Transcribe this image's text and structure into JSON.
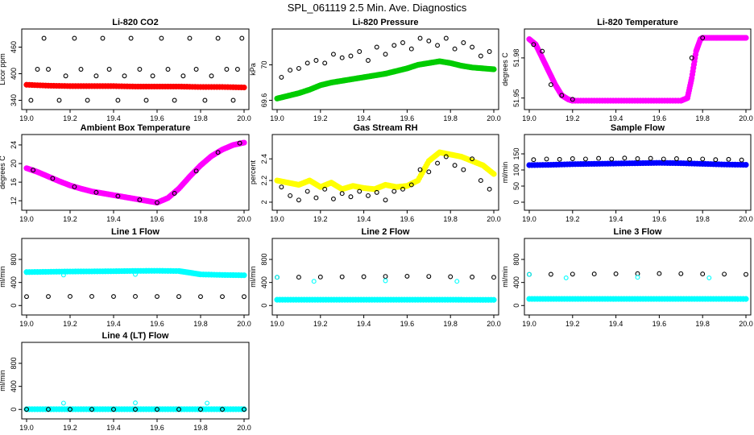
{
  "figure": {
    "title": "SPL_061119  2.5 Min. Ave. Diagnostics"
  },
  "chart_data": [
    {
      "type": "scatter",
      "title": "Li-820 CO2",
      "xlabel": "",
      "ylabel": "Licor ppm",
      "xlim": [
        19.0,
        20.0
      ],
      "ylim": [
        330,
        490
      ],
      "xticks": [
        19.0,
        19.2,
        19.4,
        19.6,
        19.8,
        20.0
      ],
      "yticks": [
        340,
        400,
        460
      ],
      "series": [
        {
          "color": "#000000",
          "marker": "open-circle",
          "x": [
            19.02,
            19.08,
            19.15,
            19.22,
            19.28,
            19.35,
            19.42,
            19.48,
            19.55,
            19.62,
            19.68,
            19.75,
            19.82,
            19.88,
            19.95,
            19.99
          ],
          "y": [
            340,
            480,
            340,
            480,
            340,
            480,
            340,
            480,
            340,
            480,
            340,
            480,
            340,
            480,
            340,
            480
          ]
        },
        {
          "color": "#000000",
          "marker": "open-circle",
          "x": [
            19.05,
            19.1,
            19.18,
            19.25,
            19.32,
            19.38,
            19.45,
            19.52,
            19.58,
            19.65,
            19.72,
            19.78,
            19.85,
            19.92,
            19.97
          ],
          "y": [
            410,
            410,
            395,
            410,
            395,
            410,
            395,
            410,
            395,
            410,
            395,
            410,
            395,
            410,
            410
          ]
        },
        {
          "color": "#ff0000",
          "marker": "filled-circle",
          "x": [
            19.0,
            19.1,
            19.2,
            19.3,
            19.4,
            19.5,
            19.6,
            19.7,
            19.8,
            19.9,
            20.0
          ],
          "y": [
            375,
            373,
            372,
            372,
            372,
            371,
            371,
            371,
            370,
            370,
            369
          ]
        }
      ]
    },
    {
      "type": "scatter",
      "title": "Li-820 Pressure",
      "xlabel": "",
      "ylabel": "kPa",
      "xlim": [
        19.0,
        20.0
      ],
      "ylim": [
        69.55,
        70.35
      ],
      "xticks": [
        19.0,
        19.2,
        19.4,
        19.6,
        19.8,
        20.0
      ],
      "yticks": [
        69.6,
        70.0
      ],
      "series": [
        {
          "color": "#00cc00",
          "marker": "filled-circle",
          "x": [
            19.0,
            19.05,
            19.1,
            19.15,
            19.2,
            19.25,
            19.3,
            19.35,
            19.4,
            19.45,
            19.5,
            19.55,
            19.6,
            19.65,
            19.7,
            19.75,
            19.8,
            19.85,
            19.9,
            19.95,
            20.0
          ],
          "y": [
            69.62,
            69.65,
            69.68,
            69.72,
            69.77,
            69.8,
            69.82,
            69.84,
            69.86,
            69.88,
            69.9,
            69.93,
            69.96,
            70.0,
            70.02,
            70.04,
            70.02,
            69.99,
            69.97,
            69.96,
            69.95
          ]
        },
        {
          "color": "#000000",
          "marker": "open-circle",
          "x": [
            19.02,
            19.06,
            19.1,
            19.14,
            19.18,
            19.22,
            19.26,
            19.3,
            19.34,
            19.38,
            19.42,
            19.46,
            19.5,
            19.54,
            19.58,
            19.62,
            19.66,
            19.7,
            19.74,
            19.78,
            19.82,
            19.86,
            19.9,
            19.94,
            19.98
          ],
          "y": [
            69.86,
            69.94,
            69.96,
            70.02,
            70.05,
            70.02,
            70.12,
            70.08,
            70.1,
            70.15,
            70.05,
            70.2,
            70.12,
            70.22,
            70.25,
            70.18,
            70.3,
            70.27,
            70.22,
            70.3,
            70.18,
            70.25,
            70.2,
            70.1,
            70.15
          ]
        }
      ]
    },
    {
      "type": "scatter",
      "title": "Li-820 Temperature",
      "xlabel": "",
      "ylabel": "degrees C",
      "xlim": [
        19.0,
        20.0
      ],
      "ylim": [
        51.945,
        51.998
      ],
      "xticks": [
        19.0,
        19.2,
        19.4,
        19.6,
        19.8,
        20.0
      ],
      "yticks": [
        51.95,
        51.98
      ],
      "series": [
        {
          "color": "#ff00ff",
          "marker": "filled-circle",
          "x": [
            19.0,
            19.03,
            19.06,
            19.09,
            19.12,
            19.15,
            19.18,
            19.2,
            19.3,
            19.4,
            19.5,
            19.6,
            19.7,
            19.73,
            19.75,
            19.77,
            19.79,
            19.8,
            19.85,
            19.9,
            19.95,
            20.0
          ],
          "y": [
            51.994,
            51.99,
            51.98,
            51.97,
            51.96,
            51.952,
            51.949,
            51.948,
            51.948,
            51.948,
            51.948,
            51.948,
            51.948,
            51.95,
            51.965,
            51.985,
            51.994,
            51.995,
            51.995,
            51.995,
            51.995,
            51.995
          ]
        },
        {
          "color": "#000000",
          "marker": "open-circle",
          "x": [
            19.02,
            19.06,
            19.1,
            19.15,
            19.2,
            19.75,
            19.8
          ],
          "y": [
            51.99,
            51.985,
            51.96,
            51.952,
            51.949,
            51.98,
            51.995
          ]
        }
      ]
    },
    {
      "type": "scatter",
      "title": "Ambient Box Temperature",
      "xlabel": "",
      "ylabel": "degrees C",
      "xlim": [
        19.0,
        20.0
      ],
      "ylim": [
        11.0,
        25.2
      ],
      "xticks": [
        19.0,
        19.2,
        19.4,
        19.6,
        19.8,
        20.0
      ],
      "yticks": [
        12,
        16,
        20,
        24
      ],
      "series": [
        {
          "color": "#ff00ff",
          "marker": "filled-circle",
          "x": [
            19.0,
            19.05,
            19.1,
            19.15,
            19.2,
            19.25,
            19.3,
            19.35,
            19.4,
            19.45,
            19.5,
            19.55,
            19.6,
            19.65,
            19.7,
            19.75,
            19.8,
            19.85,
            19.9,
            19.95,
            20.0
          ],
          "y": [
            19.0,
            18.2,
            17.2,
            16.2,
            15.3,
            14.6,
            14.0,
            13.6,
            13.2,
            12.8,
            12.4,
            12.0,
            11.6,
            12.6,
            14.6,
            17.2,
            19.6,
            21.6,
            23.0,
            24.0,
            24.5
          ]
        },
        {
          "color": "#000000",
          "marker": "open-circle",
          "x": [
            19.03,
            19.12,
            19.22,
            19.32,
            19.42,
            19.52,
            19.6,
            19.68,
            19.78,
            19.88,
            19.98
          ],
          "y": [
            18.6,
            16.8,
            15.0,
            13.8,
            13.0,
            12.2,
            11.6,
            13.6,
            18.4,
            22.4,
            24.4
          ]
        }
      ]
    },
    {
      "type": "scatter",
      "title": "Gas Stream RH",
      "xlabel": "",
      "ylabel": "percent",
      "xlim": [
        19.0,
        20.0
      ],
      "ylim": [
        1.97,
        2.58
      ],
      "xticks": [
        19.0,
        19.2,
        19.4,
        19.6,
        19.8,
        20.0
      ],
      "yticks": [
        2.0,
        2.2,
        2.4
      ],
      "series": [
        {
          "color": "#ffff00",
          "marker": "filled-circle",
          "x": [
            19.0,
            19.05,
            19.1,
            19.15,
            19.2,
            19.25,
            19.3,
            19.35,
            19.4,
            19.45,
            19.5,
            19.55,
            19.6,
            19.65,
            19.7,
            19.75,
            19.8,
            19.85,
            19.9,
            19.95,
            20.0
          ],
          "y": [
            2.2,
            2.18,
            2.16,
            2.2,
            2.14,
            2.18,
            2.12,
            2.15,
            2.13,
            2.12,
            2.16,
            2.14,
            2.15,
            2.2,
            2.38,
            2.46,
            2.44,
            2.42,
            2.38,
            2.34,
            2.26
          ]
        },
        {
          "color": "#000000",
          "marker": "open-circle",
          "x": [
            19.02,
            19.06,
            19.1,
            19.14,
            19.18,
            19.22,
            19.26,
            19.3,
            19.34,
            19.38,
            19.42,
            19.46,
            19.5,
            19.54,
            19.58,
            19.62,
            19.66,
            19.7,
            19.74,
            19.78,
            19.82,
            19.86,
            19.9,
            19.94,
            19.98
          ],
          "y": [
            2.14,
            2.06,
            2.02,
            2.1,
            2.04,
            2.12,
            2.03,
            2.08,
            2.05,
            2.1,
            2.06,
            2.09,
            2.02,
            2.1,
            2.12,
            2.16,
            2.3,
            2.28,
            2.36,
            2.42,
            2.34,
            2.3,
            2.4,
            2.2,
            2.12
          ]
        }
      ]
    },
    {
      "type": "scatter",
      "title": "Sample Flow",
      "xlabel": "",
      "ylabel": "ml/min",
      "xlim": [
        19.0,
        20.0
      ],
      "ylim": [
        -10,
        195
      ],
      "xticks": [
        19.0,
        19.2,
        19.4,
        19.6,
        19.8,
        20.0
      ],
      "yticks": [
        0,
        50,
        100,
        150
      ],
      "series": [
        {
          "color": "#0000ff",
          "marker": "filled-circle",
          "x": [
            19.0,
            19.1,
            19.2,
            19.3,
            19.4,
            19.5,
            19.6,
            19.7,
            19.8,
            19.9,
            20.0
          ],
          "y": [
            115,
            116,
            118,
            119,
            120,
            121,
            122,
            121,
            119,
            117,
            116
          ]
        },
        {
          "color": "#000000",
          "marker": "open-circle",
          "x": [
            19.02,
            19.08,
            19.14,
            19.2,
            19.26,
            19.32,
            19.38,
            19.44,
            19.5,
            19.56,
            19.62,
            19.68,
            19.74,
            19.8,
            19.86,
            19.92,
            19.98
          ],
          "y": [
            132,
            134,
            133,
            135,
            134,
            136,
            134,
            137,
            135,
            136,
            134,
            135,
            133,
            134,
            132,
            133,
            131
          ]
        }
      ]
    },
    {
      "type": "scatter",
      "title": "Line 1 Flow",
      "xlabel": "",
      "ylabel": "ml/min",
      "xlim": [
        19.0,
        20.0
      ],
      "ylim": [
        -80,
        1080
      ],
      "xticks": [
        19.0,
        19.2,
        19.4,
        19.6,
        19.8,
        20.0
      ],
      "yticks": [
        0,
        400,
        800
      ],
      "series": [
        {
          "color": "#00ffff",
          "marker": "filled-circle",
          "x": [
            19.0,
            19.1,
            19.2,
            19.3,
            19.4,
            19.5,
            19.6,
            19.7,
            19.75,
            19.8,
            19.9,
            20.0
          ],
          "y": [
            580,
            585,
            590,
            592,
            595,
            600,
            602,
            598,
            570,
            540,
            530,
            525
          ]
        },
        {
          "color": "#000000",
          "marker": "open-circle",
          "x": [
            19.0,
            19.1,
            19.2,
            19.3,
            19.4,
            19.5,
            19.6,
            19.7,
            19.8,
            19.9,
            20.0
          ],
          "y": [
            155,
            157,
            158,
            158,
            157,
            158,
            157,
            156,
            155,
            155,
            154
          ]
        },
        {
          "color": "#00ffff",
          "marker": "open-circle",
          "x": [
            19.17,
            19.5
          ],
          "y": [
            530,
            540
          ]
        }
      ]
    },
    {
      "type": "scatter",
      "title": "Line 2 Flow",
      "xlabel": "",
      "ylabel": "ml/min",
      "xlim": [
        19.0,
        20.0
      ],
      "ylim": [
        -80,
        1080
      ],
      "xticks": [
        19.0,
        19.2,
        19.4,
        19.6,
        19.8,
        20.0
      ],
      "yticks": [
        0,
        400,
        800
      ],
      "series": [
        {
          "color": "#000000",
          "marker": "open-circle",
          "x": [
            19.0,
            19.1,
            19.2,
            19.3,
            19.4,
            19.5,
            19.6,
            19.7,
            19.8,
            19.9,
            20.0
          ],
          "y": [
            490,
            492,
            495,
            498,
            500,
            505,
            508,
            505,
            500,
            495,
            490
          ]
        },
        {
          "color": "#00ffff",
          "marker": "filled-circle",
          "x": [
            19.0,
            19.1,
            19.2,
            19.3,
            19.4,
            19.5,
            19.6,
            19.7,
            19.8,
            19.9,
            20.0
          ],
          "y": [
            100,
            100,
            100,
            100,
            100,
            100,
            100,
            100,
            100,
            99,
            98
          ]
        },
        {
          "color": "#00ffff",
          "marker": "open-circle",
          "x": [
            19.0,
            19.17,
            19.5,
            19.83
          ],
          "y": [
            490,
            420,
            430,
            420
          ]
        }
      ]
    },
    {
      "type": "scatter",
      "title": "Line 3 Flow",
      "xlabel": "",
      "ylabel": "ml/min",
      "xlim": [
        19.0,
        20.0
      ],
      "ylim": [
        -80,
        1080
      ],
      "xticks": [
        19.0,
        19.2,
        19.4,
        19.6,
        19.8,
        20.0
      ],
      "yticks": [
        0,
        400,
        800
      ],
      "series": [
        {
          "color": "#000000",
          "marker": "open-circle",
          "x": [
            19.0,
            19.1,
            19.2,
            19.3,
            19.4,
            19.5,
            19.6,
            19.7,
            19.8,
            19.9,
            20.0
          ],
          "y": [
            540,
            542,
            545,
            548,
            550,
            553,
            555,
            552,
            548,
            545,
            540
          ]
        },
        {
          "color": "#00ffff",
          "marker": "filled-circle",
          "x": [
            19.0,
            19.1,
            19.2,
            19.3,
            19.4,
            19.5,
            19.6,
            19.7,
            19.8,
            19.9,
            20.0
          ],
          "y": [
            115,
            115,
            115,
            115,
            115,
            115,
            115,
            115,
            115,
            115,
            114
          ]
        },
        {
          "color": "#00ffff",
          "marker": "open-circle",
          "x": [
            19.0,
            19.17,
            19.5,
            19.83
          ],
          "y": [
            540,
            480,
            490,
            480
          ]
        }
      ]
    },
    {
      "type": "scatter",
      "title": "Line 4 (LT) Flow",
      "xlabel": "",
      "ylabel": "ml/min",
      "xlim": [
        19.0,
        20.0
      ],
      "ylim": [
        -80,
        1080
      ],
      "xticks": [
        19.0,
        19.2,
        19.4,
        19.6,
        19.8,
        20.0
      ],
      "yticks": [
        0,
        400,
        800
      ],
      "series": [
        {
          "color": "#00ffff",
          "marker": "filled-circle",
          "x": [
            19.0,
            19.1,
            19.2,
            19.3,
            19.4,
            19.5,
            19.6,
            19.7,
            19.8,
            19.9,
            20.0
          ],
          "y": [
            4,
            4,
            4,
            4,
            4,
            4,
            4,
            4,
            4,
            4,
            4
          ]
        },
        {
          "color": "#000000",
          "marker": "open-circle",
          "x": [
            19.0,
            19.1,
            19.2,
            19.3,
            19.4,
            19.5,
            19.6,
            19.7,
            19.8,
            19.9,
            20.0
          ],
          "y": [
            2,
            2,
            2,
            2,
            2,
            2,
            2,
            2,
            2,
            2,
            2
          ]
        },
        {
          "color": "#00ffff",
          "marker": "open-circle",
          "x": [
            19.17,
            19.5,
            19.83
          ],
          "y": [
            110,
            115,
            110
          ]
        }
      ]
    }
  ]
}
